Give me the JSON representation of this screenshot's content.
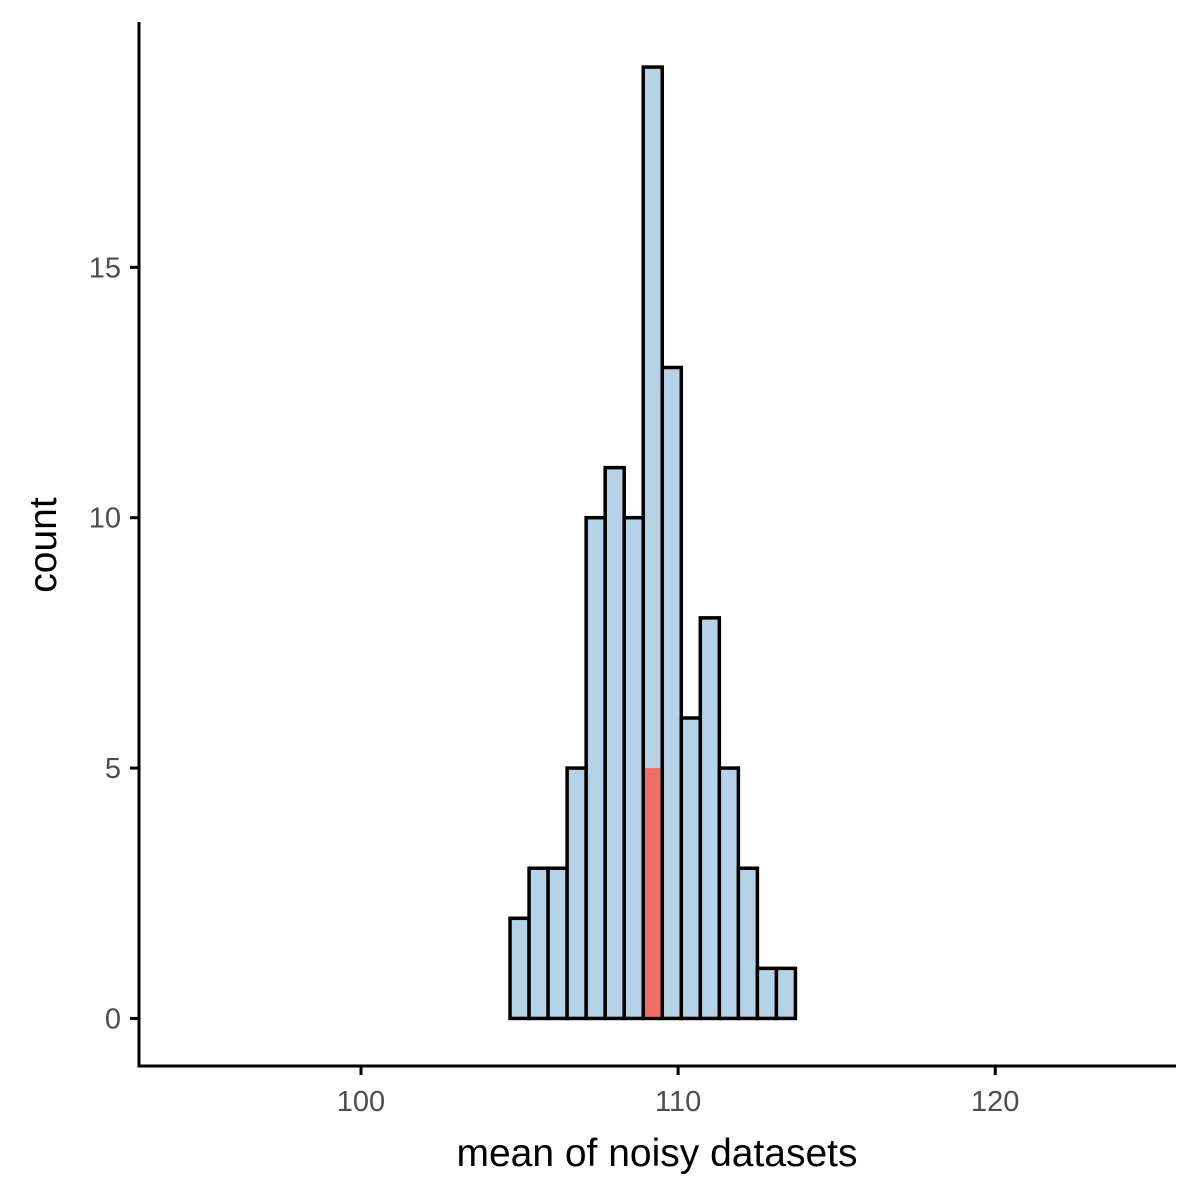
{
  "chart_data": {
    "type": "bar",
    "title": "",
    "xlabel": "mean of noisy datasets",
    "ylabel": "count",
    "xlim": [
      93,
      125.7
    ],
    "ylim": [
      -0.95,
      19.9
    ],
    "x_ticks": [
      100,
      110,
      120
    ],
    "y_ticks": [
      0,
      5,
      10,
      15
    ],
    "bin_width": 0.6,
    "grid": false,
    "legend": "none",
    "colors": {
      "bar_fill": "#b6d2e6",
      "bar_outline": "#000000",
      "highlight_fill": "#f06e68",
      "axis": "#000000",
      "tick_label": "#4d4d4d"
    },
    "bins": [
      {
        "x": 105.0,
        "count": 2
      },
      {
        "x": 105.6,
        "count": 3
      },
      {
        "x": 106.2,
        "count": 3
      },
      {
        "x": 106.8,
        "count": 5
      },
      {
        "x": 107.4,
        "count": 10
      },
      {
        "x": 108.0,
        "count": 11
      },
      {
        "x": 108.6,
        "count": 10
      },
      {
        "x": 109.2,
        "count": 19
      },
      {
        "x": 109.8,
        "count": 13
      },
      {
        "x": 110.4,
        "count": 6
      },
      {
        "x": 111.0,
        "count": 8
      },
      {
        "x": 111.6,
        "count": 5
      },
      {
        "x": 112.2,
        "count": 3
      },
      {
        "x": 112.8,
        "count": 1
      },
      {
        "x": 113.4,
        "count": 1
      }
    ],
    "highlight": {
      "x": 109.2,
      "count": 5
    }
  }
}
